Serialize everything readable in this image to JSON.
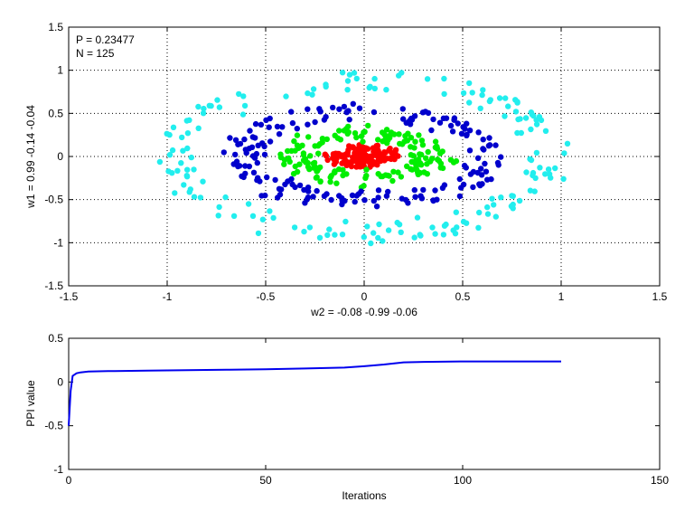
{
  "chart_data": [
    {
      "type": "scatter",
      "annotation": [
        "P = 0.23477",
        "N = 125"
      ],
      "xlabel": "w2 = -0.08  -0.99  -0.06",
      "ylabel": "w1 = 0.99  -0.14  -0.04",
      "xlim": [
        -1.5,
        1.5
      ],
      "ylim": [
        -1.5,
        1.5
      ],
      "xticks": [
        -1.5,
        -1,
        -0.5,
        0,
        0.5,
        1,
        1.5
      ],
      "yticks": [
        -1.5,
        -1,
        -0.5,
        0,
        0.5,
        1,
        1.5
      ],
      "grid": true,
      "colors": [
        "#ff0000",
        "#00ee00",
        "#0000cc",
        "#22eeee"
      ],
      "series": [
        {
          "color": "#ff0000",
          "count": 130,
          "shape": "ellipse",
          "rx_range": [
            0,
            0.18
          ],
          "ry_range": [
            0,
            0.12
          ],
          "center": [
            0,
            0
          ]
        },
        {
          "color": "#00ee00",
          "count": 160,
          "shape": "ring",
          "rx_range": [
            0.25,
            0.45
          ],
          "ry_range": [
            0.18,
            0.35
          ],
          "center": [
            0,
            0
          ]
        },
        {
          "color": "#0000cc",
          "count": 180,
          "shape": "ring",
          "rx_range": [
            0.52,
            0.72
          ],
          "ry_range": [
            0.42,
            0.62
          ],
          "center": [
            0,
            0
          ]
        },
        {
          "color": "#22eeee",
          "count": 170,
          "shape": "ring",
          "rx_range": [
            0.85,
            1.05
          ],
          "ry_range": [
            0.75,
            1.0
          ],
          "center": [
            0,
            0
          ]
        }
      ]
    },
    {
      "type": "line",
      "xlabel": "Iterations",
      "ylabel": "PPI value",
      "xlim": [
        0,
        150
      ],
      "ylim": [
        -1,
        0.5
      ],
      "xticks": [
        0,
        50,
        100,
        150
      ],
      "yticks": [
        -1,
        -0.5,
        0,
        0.5
      ],
      "grid": false,
      "color": "#0000ee",
      "series": [
        {
          "x": [
            0,
            0.5,
            1,
            2,
            3,
            5,
            10,
            20,
            30,
            40,
            50,
            60,
            70,
            75,
            80,
            85,
            90,
            100,
            110,
            120,
            125
          ],
          "y": [
            -0.5,
            -0.1,
            0.07,
            0.1,
            0.11,
            0.12,
            0.125,
            0.13,
            0.135,
            0.14,
            0.145,
            0.155,
            0.165,
            0.18,
            0.2,
            0.225,
            0.23,
            0.235,
            0.235,
            0.235,
            0.235
          ]
        }
      ]
    }
  ]
}
